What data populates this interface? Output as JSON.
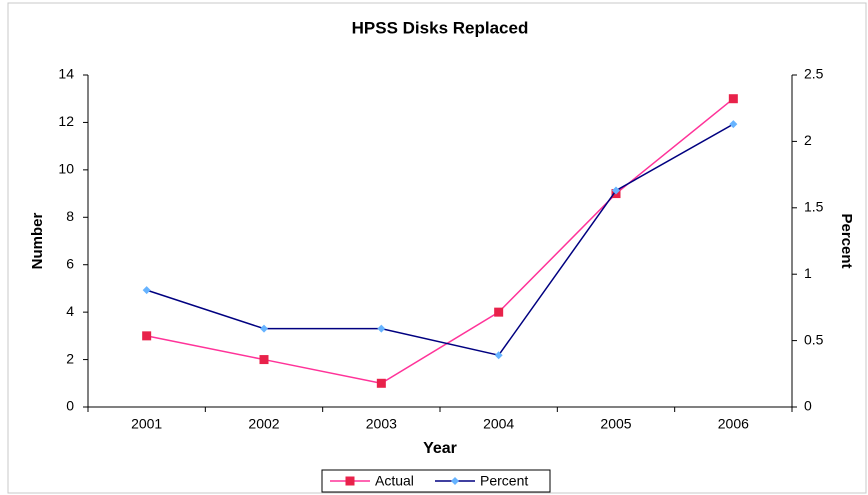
{
  "chart_data": {
    "type": "line",
    "title": "HPSS Disks Replaced",
    "x_label": "Year",
    "y_label": "Number",
    "y2_label": "Percent",
    "categories": [
      "2001",
      "2002",
      "2003",
      "2004",
      "2005",
      "2006"
    ],
    "series": [
      {
        "name": "Actual",
        "color": "#ff3399",
        "marker_color": "#e8224a",
        "marker": "square",
        "values": [
          3,
          2,
          1,
          4,
          9,
          13
        ]
      },
      {
        "name": "Percent",
        "color": "#000080",
        "marker_color": "#66b3ff",
        "marker": "diamond",
        "axis": "y2",
        "values": [
          0.88,
          0.59,
          0.59,
          0.39,
          1.63,
          2.13
        ]
      }
    ],
    "ylim": [
      0,
      14
    ],
    "yticks": [
      0,
      2,
      4,
      6,
      8,
      10,
      12,
      14
    ],
    "y2lim": [
      0,
      2.5
    ],
    "y2ticks": [
      0,
      0.5,
      1,
      1.5,
      2,
      2.5
    ],
    "grid": false,
    "legend": "bottom"
  }
}
